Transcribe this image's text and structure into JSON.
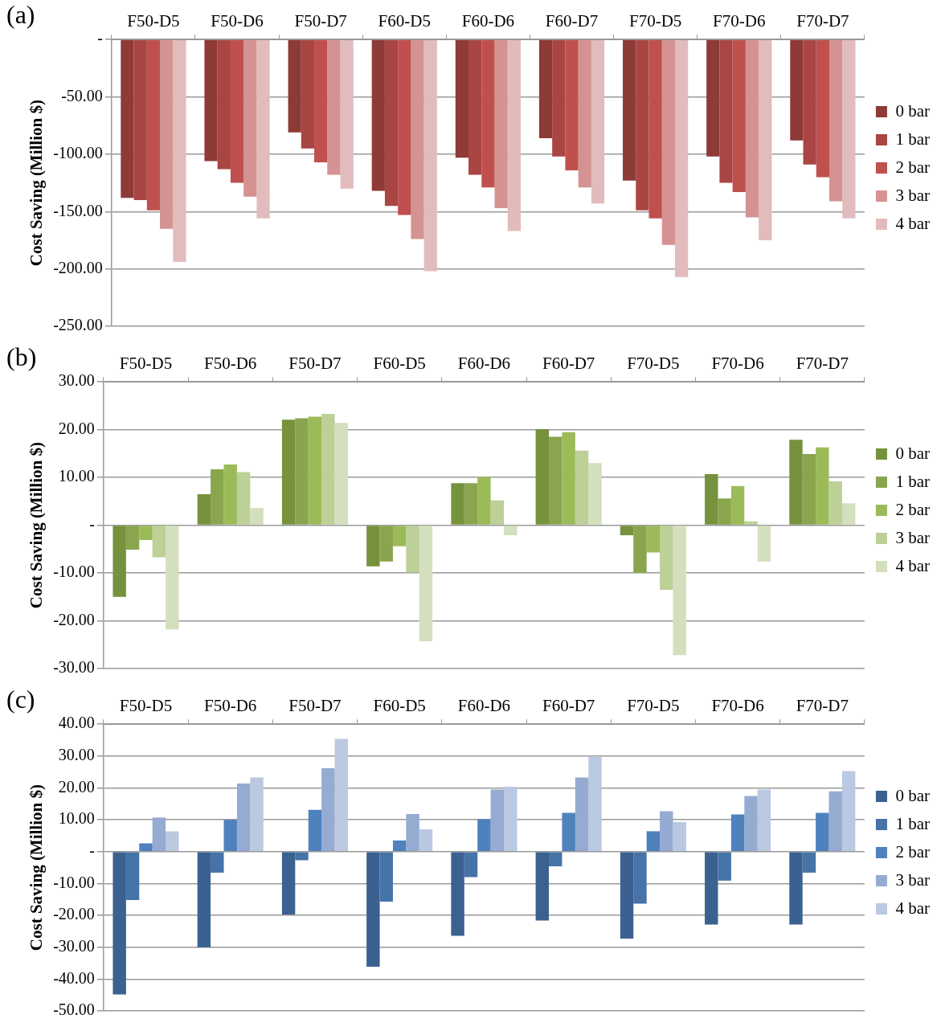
{
  "chart_data": [
    {
      "type": "bar",
      "annotations": [
        "(a)"
      ],
      "ylabel": "Cost Saving (Million $)",
      "categories": [
        "F50-D5",
        "F50-D6",
        "F50-D7",
        "F60-D5",
        "F60-D6",
        "F60-D7",
        "F70-D5",
        "F70-D6",
        "F70-D7"
      ],
      "series": [
        {
          "name": "0 bar",
          "color": "#8e3a37",
          "values": [
            -138,
            -106,
            -81,
            -132,
            -103,
            -86,
            -123,
            -102,
            -88
          ]
        },
        {
          "name": "1 bar",
          "color": "#a94543",
          "values": [
            -140,
            -113,
            -95,
            -145,
            -118,
            -102,
            -149,
            -125,
            -109
          ]
        },
        {
          "name": "2 bar",
          "color": "#c0504d",
          "values": [
            -149,
            -125,
            -107,
            -153,
            -129,
            -114,
            -156,
            -133,
            -120
          ]
        },
        {
          "name": "3 bar",
          "color": "#d49392",
          "values": [
            -165,
            -137,
            -118,
            -174,
            -147,
            -129,
            -179,
            -155,
            -141
          ]
        },
        {
          "name": "4 bar",
          "color": "#e2bcbc",
          "values": [
            -194,
            -156,
            -130,
            -202,
            -167,
            -143,
            -207,
            -175,
            -156
          ]
        }
      ],
      "ylim": [
        -250,
        0
      ],
      "yticks": [
        {
          "value": -250,
          "label": "-250.00"
        },
        {
          "value": -200,
          "label": "-200.00"
        },
        {
          "value": -150,
          "label": "-150.00"
        },
        {
          "value": -100,
          "label": "-100.00"
        },
        {
          "value": -50,
          "label": "-50.00"
        },
        {
          "value": 0,
          "label": "-"
        }
      ],
      "grid": "y",
      "legend": "right"
    },
    {
      "type": "bar",
      "annotations": [
        "(b)"
      ],
      "ylabel": "Cost Saving (Million $)",
      "categories": [
        "F50-D5",
        "F50-D6",
        "F50-D7",
        "F60-D5",
        "F60-D6",
        "F60-D7",
        "F70-D5",
        "F70-D6",
        "F70-D7"
      ],
      "series": [
        {
          "name": "0 bar",
          "color": "#76923c",
          "values": [
            -15.0,
            6.5,
            22.1,
            -8.6,
            8.8,
            20.1,
            -2.1,
            10.7,
            17.9
          ]
        },
        {
          "name": "1 bar",
          "color": "#89a54e",
          "values": [
            -5.1,
            11.7,
            22.4,
            -7.6,
            8.8,
            18.5,
            -10.0,
            5.6,
            14.9
          ]
        },
        {
          "name": "2 bar",
          "color": "#9bbb59",
          "values": [
            -3.1,
            12.7,
            22.7,
            -4.4,
            10.1,
            19.5,
            -5.7,
            8.2,
            16.3
          ]
        },
        {
          "name": "3 bar",
          "color": "#bcd097",
          "values": [
            -6.7,
            11.1,
            23.3,
            -9.9,
            5.2,
            15.6,
            -13.5,
            0.8,
            9.2
          ]
        },
        {
          "name": "4 bar",
          "color": "#d3dfbd",
          "values": [
            -21.8,
            3.6,
            21.4,
            -24.3,
            -2.1,
            13.0,
            -27.2,
            -7.6,
            4.6
          ]
        }
      ],
      "ylim": [
        -30,
        30
      ],
      "yticks": [
        {
          "value": -30,
          "label": "-30.00"
        },
        {
          "value": -20,
          "label": "-20.00"
        },
        {
          "value": -10,
          "label": "-10.00"
        },
        {
          "value": 0,
          "label": "-"
        },
        {
          "value": 10,
          "label": "10.00"
        },
        {
          "value": 20,
          "label": "20.00"
        },
        {
          "value": 30,
          "label": "30.00"
        }
      ],
      "grid": "y",
      "legend": "right"
    },
    {
      "type": "bar",
      "annotations": [
        "(c)"
      ],
      "ylabel": "Cost Saving (Million $)",
      "categories": [
        "F50-D5",
        "F50-D6",
        "F50-D7",
        "F60-D5",
        "F60-D6",
        "F60-D7",
        "F70-D5",
        "F70-D6",
        "F70-D7"
      ],
      "series": [
        {
          "name": "0 bar",
          "color": "#3b6190",
          "values": [
            -44.8,
            -30.0,
            -19.7,
            -36.1,
            -26.4,
            -21.6,
            -27.3,
            -22.9,
            -22.9
          ]
        },
        {
          "name": "1 bar",
          "color": "#4673a8",
          "values": [
            -15.2,
            -6.6,
            -2.7,
            -15.7,
            -8.0,
            -4.6,
            -16.3,
            -9.1,
            -6.6
          ]
        },
        {
          "name": "2 bar",
          "color": "#4f81bd",
          "values": [
            2.6,
            10.0,
            13.1,
            3.5,
            10.2,
            12.2,
            6.4,
            11.7,
            12.2
          ]
        },
        {
          "name": "3 bar",
          "color": "#95abd2",
          "values": [
            10.7,
            21.4,
            26.2,
            11.8,
            19.5,
            23.3,
            12.7,
            17.5,
            18.9
          ]
        },
        {
          "name": "4 bar",
          "color": "#bac8e1",
          "values": [
            6.4,
            23.3,
            35.4,
            7.0,
            20.4,
            29.7,
            9.3,
            19.5,
            25.3
          ]
        }
      ],
      "ylim": [
        -50,
        40
      ],
      "yticks": [
        {
          "value": -50,
          "label": "-50.00"
        },
        {
          "value": -40,
          "label": "-40.00"
        },
        {
          "value": -30,
          "label": "-30.00"
        },
        {
          "value": -20,
          "label": "-20.00"
        },
        {
          "value": -10,
          "label": "-10.00"
        },
        {
          "value": 0,
          "label": "-"
        },
        {
          "value": 10,
          "label": "10.00"
        },
        {
          "value": 20,
          "label": "20.00"
        },
        {
          "value": 30,
          "label": "30.00"
        },
        {
          "value": 40,
          "label": "40.00"
        }
      ],
      "grid": "y",
      "legend": "right"
    }
  ]
}
